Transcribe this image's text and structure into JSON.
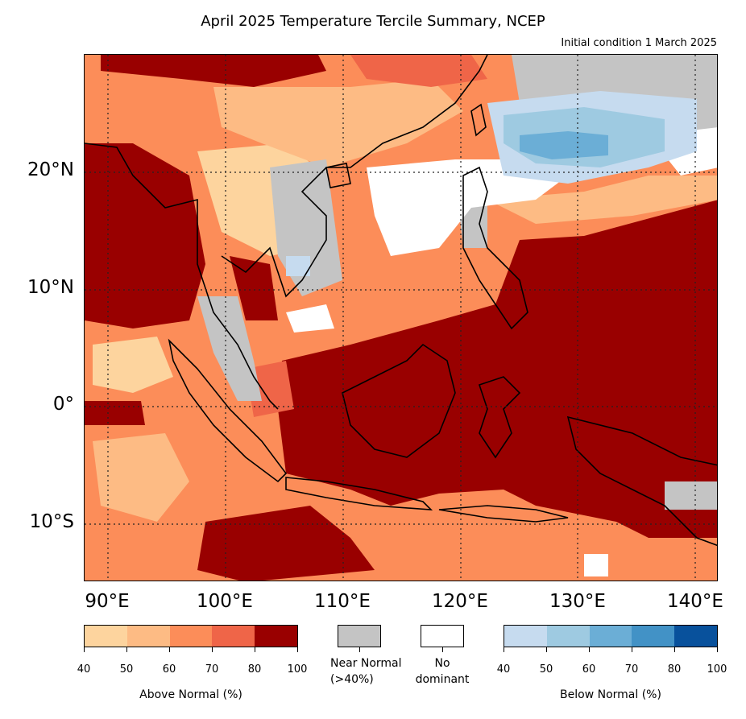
{
  "title": "April 2025 Temperature Tercile Summary, NCEP",
  "subtitle": "Initial condition 1 March 2025",
  "lat_labels": [
    {
      "text": "20°N",
      "lat": 20
    },
    {
      "text": "10°N",
      "lat": 10
    },
    {
      "text": "0°",
      "lat": 0
    },
    {
      "text": "10°S",
      "lat": -10
    }
  ],
  "lon_labels": [
    {
      "text": "90°E",
      "lon": 90
    },
    {
      "text": "100°E",
      "lon": 100
    },
    {
      "text": "110°E",
      "lon": 110
    },
    {
      "text": "120°E",
      "lon": 120
    },
    {
      "text": "130°E",
      "lon": 130
    },
    {
      "text": "140°E",
      "lon": 140
    }
  ],
  "map_extent": {
    "lon_min": 88,
    "lon_max": 142,
    "lat_min": -15,
    "lat_max": 30
  },
  "colorbars": {
    "above": {
      "label": "Above Normal (%)",
      "ticks": [
        "40",
        "50",
        "60",
        "70",
        "80",
        "100"
      ],
      "colors": [
        "#fdd49e",
        "#fdbb84",
        "#fc8d59",
        "#ef6548",
        "#990000"
      ]
    },
    "near": {
      "label_line1": "Near Normal",
      "label_line2": "(>40%)",
      "color": "#c4c4c4"
    },
    "none": {
      "label_line1": "No",
      "label_line2": "dominant",
      "color": "#ffffff"
    },
    "below": {
      "label": "Below Normal (%)",
      "ticks": [
        "40",
        "50",
        "60",
        "70",
        "80",
        "100"
      ],
      "colors": [
        "#c6dbef",
        "#9ecae1",
        "#6baed6",
        "#4292c6",
        "#08519c"
      ]
    }
  }
}
